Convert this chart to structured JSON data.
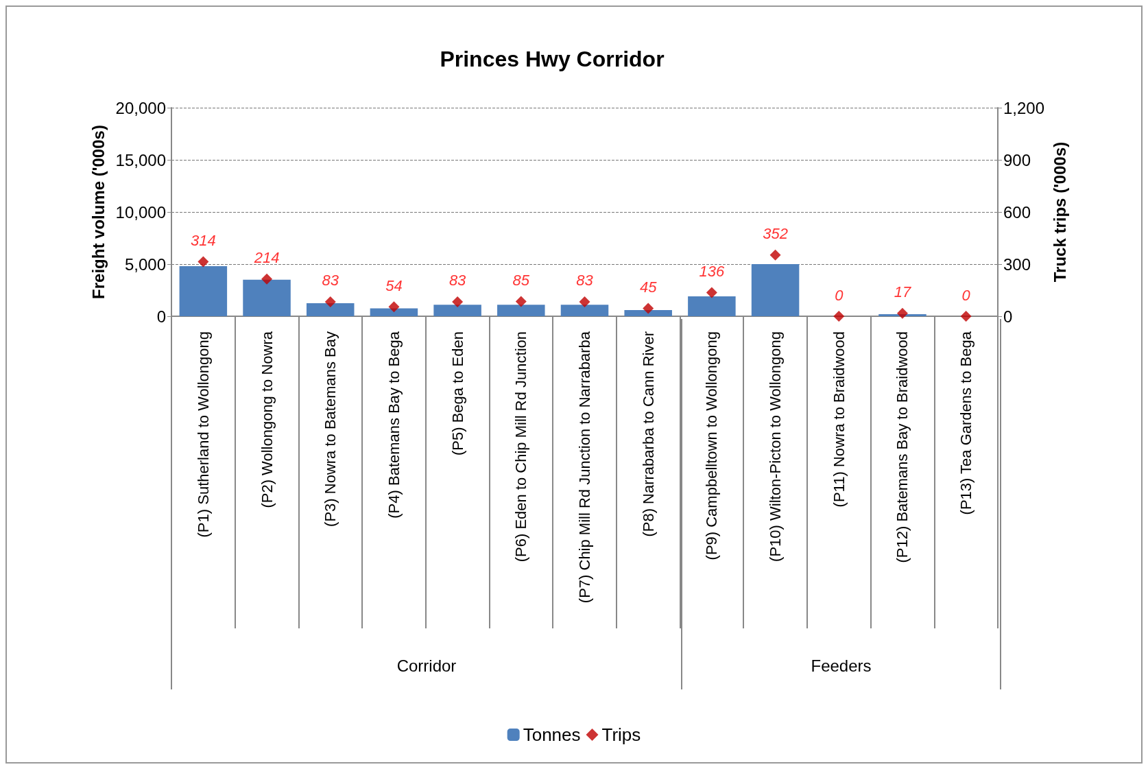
{
  "chart_data": {
    "type": "bar",
    "title": "Princes Hwy Corridor",
    "ylabel": "Freight volume ('000s)",
    "y2label": "Truck trips ('000s)",
    "categories": [
      "(P1) Sutherland to Wollongong",
      "(P2) Wollongong to Nowra",
      "(P3) Nowra to Batemans Bay",
      "(P4) Batemans Bay to Bega",
      "(P5) Bega to Eden",
      "(P6) Eden to Chip Mill Rd Junction",
      "(P7) Chip Mill Rd Junction to Narrabarba",
      "(P8) Narrabarba to Cann River",
      "(P9) Campbelltown to Wollongong",
      "(P10) Wilton-Picton to Wollongong",
      "(P11) Nowra to Braidwood",
      "(P12) Batemans Bay to Braidwood",
      "(P13) Tea Gardens to Bega"
    ],
    "series": [
      {
        "name": "Tonnes",
        "color": "#4f81bd",
        "values": [
          4800,
          3500,
          1250,
          750,
          1100,
          1100,
          1100,
          600,
          1900,
          5000,
          0,
          200,
          0
        ]
      },
      {
        "name": "Trips",
        "type": "scatter",
        "axis": "y2",
        "color": "#c00000",
        "marker": "diamond",
        "values": [
          314,
          214,
          83,
          54,
          83,
          85,
          83,
          45,
          136,
          352,
          0,
          17,
          0
        ],
        "value_labels": [
          "314",
          "214",
          "83",
          "54",
          "83",
          "85",
          "83",
          "45",
          "136",
          "352",
          "0",
          "17",
          "0"
        ]
      }
    ],
    "ylim": [
      0,
      20000
    ],
    "yticks": [
      {
        "value": 0,
        "label": "0"
      },
      {
        "value": 5000,
        "label": "5,000"
      },
      {
        "value": 10000,
        "label": "10,000"
      },
      {
        "value": 15000,
        "label": "15,000"
      },
      {
        "value": 20000,
        "label": "20,000"
      }
    ],
    "y2lim": [
      0,
      1200
    ],
    "y2ticks": [
      {
        "value": 0,
        "label": "0"
      },
      {
        "value": 300,
        "label": "300"
      },
      {
        "value": 600,
        "label": "600"
      },
      {
        "value": 900,
        "label": "900"
      },
      {
        "value": 1200,
        "label": "1,200"
      }
    ],
    "annotations": [
      "Corridor",
      "Feeders"
    ],
    "grid": "y",
    "line_style": "dashed",
    "legend": "bottom"
  }
}
